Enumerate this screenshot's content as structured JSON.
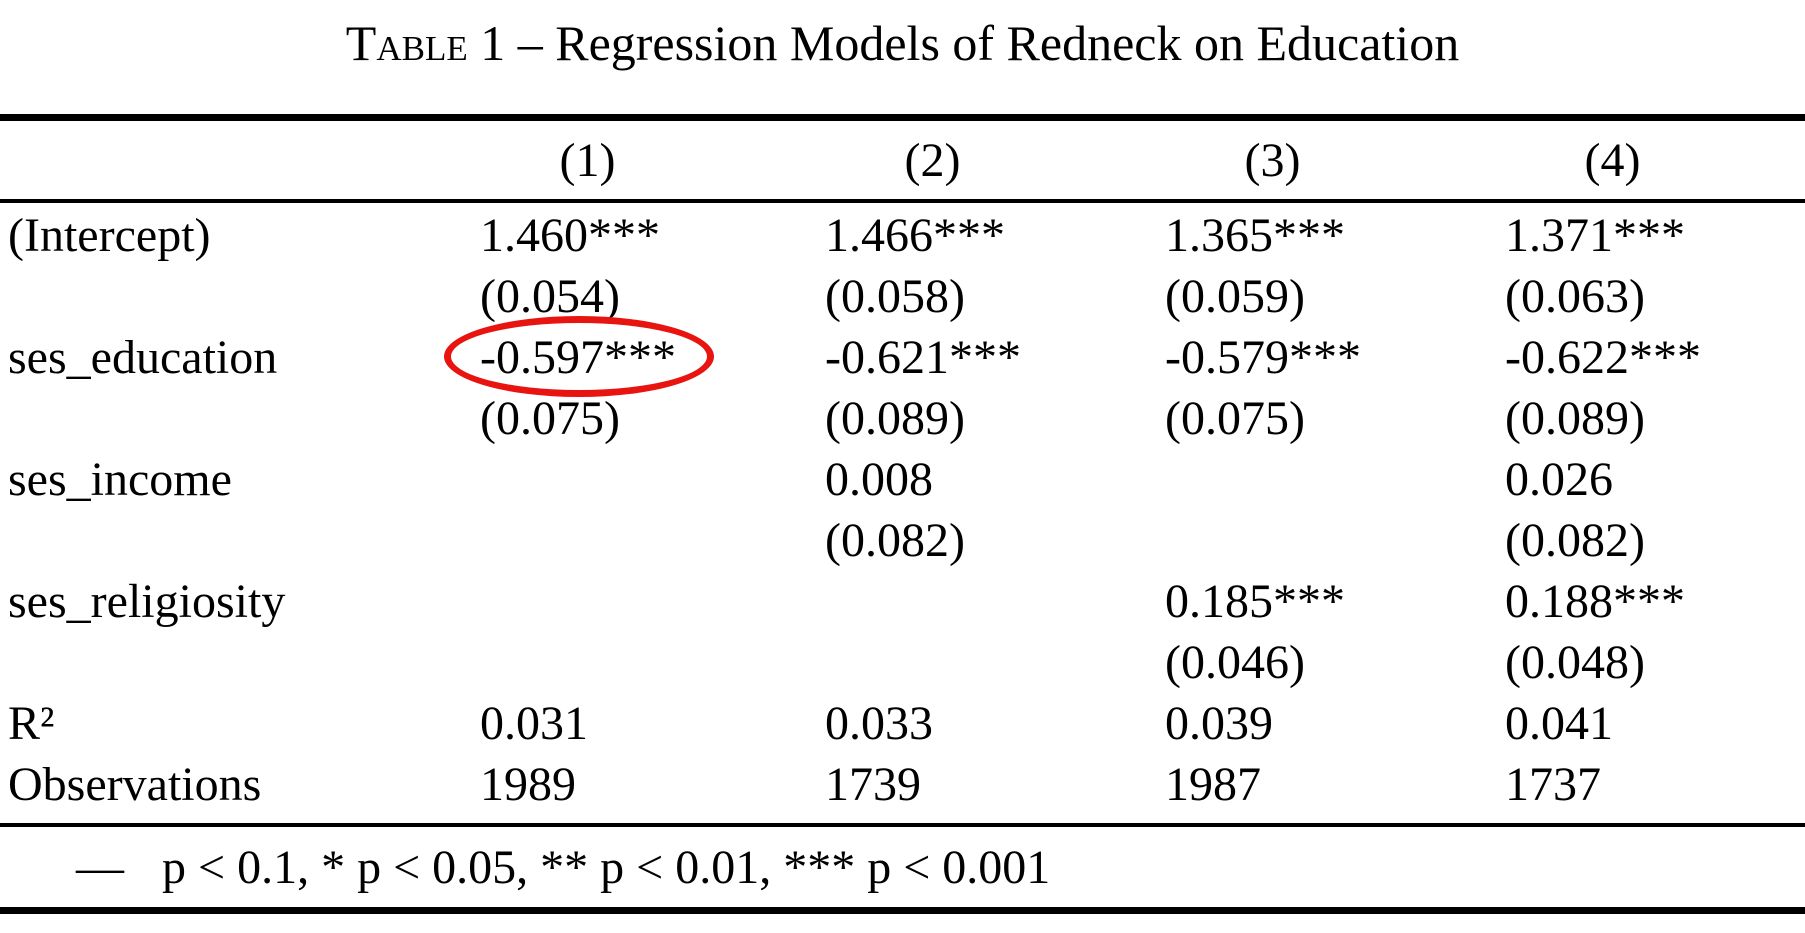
{
  "title": {
    "word": "Table",
    "rest": "1 – Regression Models of Redneck on Education"
  },
  "note": {
    "marker": "—",
    "text": "p < 0.1, * p < 0.05, ** p < 0.01, *** p < 0.001"
  },
  "annotation": {
    "shape": "red-ellipse",
    "color": "#e81410",
    "highlights_value": "-0.597***",
    "row": "ses_education",
    "column": "(1)"
  },
  "chart_data": {
    "type": "table",
    "title": "Table 1 – Regression Models of Redneck on Education",
    "columns": [
      "",
      "(1)",
      "(2)",
      "(3)",
      "(4)"
    ],
    "rows": [
      {
        "label": "(Intercept)",
        "cells": [
          "1.460***",
          "1.466***",
          "1.365***",
          "1.371***"
        ]
      },
      {
        "label": "",
        "cells": [
          "(0.054)",
          "(0.058)",
          "(0.059)",
          "(0.063)"
        ]
      },
      {
        "label": "ses_education",
        "cells": [
          "-0.597***",
          "-0.621***",
          "-0.579***",
          "-0.622***"
        ]
      },
      {
        "label": "",
        "cells": [
          "(0.075)",
          "(0.089)",
          "(0.075)",
          "(0.089)"
        ]
      },
      {
        "label": "ses_income",
        "cells": [
          "",
          "0.008",
          "",
          "0.026"
        ]
      },
      {
        "label": "",
        "cells": [
          "",
          "(0.082)",
          "",
          "(0.082)"
        ]
      },
      {
        "label": "ses_religiosity",
        "cells": [
          "",
          "",
          "0.185***",
          "0.188***"
        ]
      },
      {
        "label": "",
        "cells": [
          "",
          "",
          "(0.046)",
          "(0.048)"
        ]
      },
      {
        "label": "R²",
        "cells": [
          "0.031",
          "0.033",
          "0.039",
          "0.041"
        ]
      },
      {
        "label": "Observations",
        "cells": [
          "1989",
          "1739",
          "1987",
          "1737"
        ]
      }
    ],
    "note": "— p < 0.1, * p < 0.05, ** p < 0.01, *** p < 0.001"
  }
}
